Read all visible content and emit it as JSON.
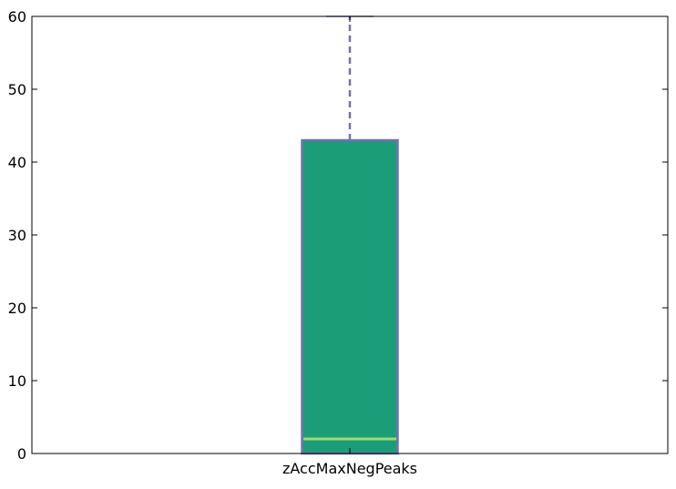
{
  "chart_data": {
    "type": "box",
    "categories": [
      "zAccMaxNegPeaks"
    ],
    "boxes": [
      {
        "name": "zAccMaxNegPeaks",
        "whislo": 0,
        "q1": 0,
        "med": 2,
        "q3": 43,
        "whishi": 60
      }
    ],
    "ylim": [
      0,
      60
    ],
    "yticks": [
      0,
      10,
      20,
      30,
      40,
      50,
      60
    ],
    "ytick_labels": [
      "0",
      "10",
      "20",
      "30",
      "40",
      "50",
      "60"
    ],
    "grid": false,
    "title": "",
    "xlabel": "",
    "ylabel": "",
    "colors": {
      "box_fill": "#1b9e77",
      "box_edge": "#7570b3",
      "median": "#a6d96a",
      "whisker": "#7570b3",
      "axes": "#000000"
    }
  }
}
